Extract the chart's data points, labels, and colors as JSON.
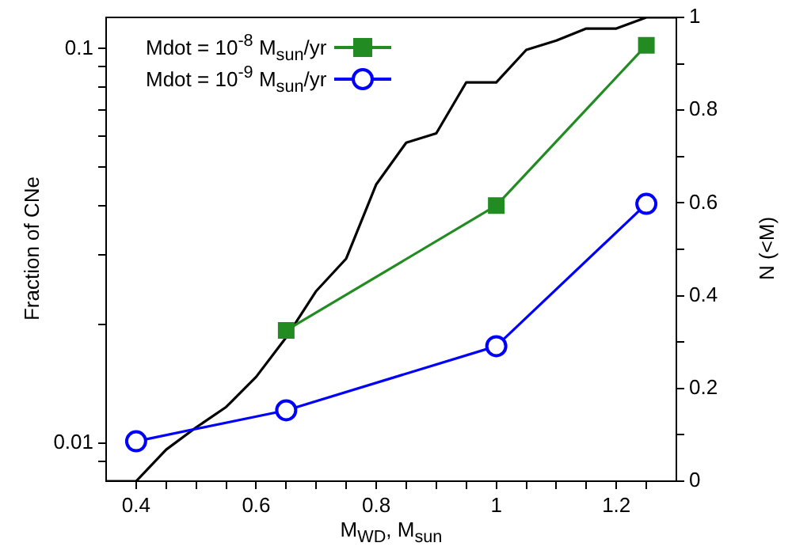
{
  "chart_data": {
    "type": "line",
    "xlabel": "M$_{WD}$, M$_{sun}$",
    "ylabel": "Fraction of CNe",
    "y2label": "N (<M)",
    "log": "y",
    "grid": false,
    "legend": "top left",
    "line_style": "solid",
    "xlim": [
      0.35,
      1.3
    ],
    "xticks": [
      0.4,
      0.6,
      0.8,
      1,
      1.2,
      {
        "value": 0.45,
        "label": null
      },
      {
        "value": 0.5,
        "label": null
      },
      {
        "value": 0.55,
        "label": null
      },
      {
        "value": 0.65,
        "label": null
      },
      {
        "value": 0.7,
        "label": null
      },
      {
        "value": 0.75,
        "label": null
      },
      {
        "value": 0.85,
        "label": null
      },
      {
        "value": 0.9,
        "label": null
      },
      {
        "value": 0.95,
        "label": null
      },
      {
        "value": 1.05,
        "label": null
      },
      {
        "value": 1.1,
        "label": null
      },
      {
        "value": 1.15,
        "label": null
      },
      {
        "value": 1.25,
        "label": null
      }
    ],
    "ylim": [
      0.008,
      0.12
    ],
    "yticks": [
      0.01,
      0.1,
      {
        "value": 0.009,
        "label": null
      },
      {
        "value": 0.02,
        "label": null
      },
      {
        "value": 0.03,
        "label": null
      },
      {
        "value": 0.04,
        "label": null
      },
      {
        "value": 0.05,
        "label": null
      },
      {
        "value": 0.06,
        "label": null
      },
      {
        "value": 0.07,
        "label": null
      },
      {
        "value": 0.08,
        "label": null
      },
      {
        "value": 0.09,
        "label": null
      }
    ],
    "y2lim": [
      0,
      1
    ],
    "y2ticks": [
      0,
      0.2,
      0.4,
      0.6,
      0.8,
      1,
      {
        "value": 0.1,
        "label": null
      },
      {
        "value": 0.3,
        "label": null
      },
      {
        "value": 0.5,
        "label": null
      },
      {
        "value": 0.7,
        "label": null
      },
      {
        "value": 0.9,
        "label": null
      }
    ],
    "series": [
      {
        "name": "Mdot = 10$^{-8}$ M$_{sun}$/yr",
        "color": "#228b22",
        "marker": "square",
        "x": [
          0.65,
          1,
          1.25
        ],
        "values": [
          0.0193,
          0.04,
          0.102
        ]
      },
      {
        "name": "Mdot = 10$^{-9}$ M$_{sun}$/yr",
        "color": "#0000ff",
        "marker": "circle",
        "x": [
          0.4,
          0.65,
          1,
          1.25
        ],
        "values": [
          0.0101,
          0.0121,
          0.0176,
          0.0404
        ]
      },
      {
        "color": "#000000",
        "marker": "none",
        "axis": "y2",
        "x": [
          0.35,
          0.4,
          0.45,
          0.5,
          0.55,
          0.6,
          0.65,
          0.7,
          0.75,
          0.8,
          0.85,
          0.9,
          0.95,
          1,
          1.05,
          1.1,
          1.15,
          1.2,
          1.25,
          1.3
        ],
        "values": [
          0,
          0,
          0.068,
          0.116,
          0.16,
          0.225,
          0.31,
          0.41,
          0.48,
          0.64,
          0.73,
          0.75,
          0.86,
          0.86,
          0.93,
          0.95,
          0.976,
          0.976,
          1,
          1
        ]
      }
    ]
  }
}
